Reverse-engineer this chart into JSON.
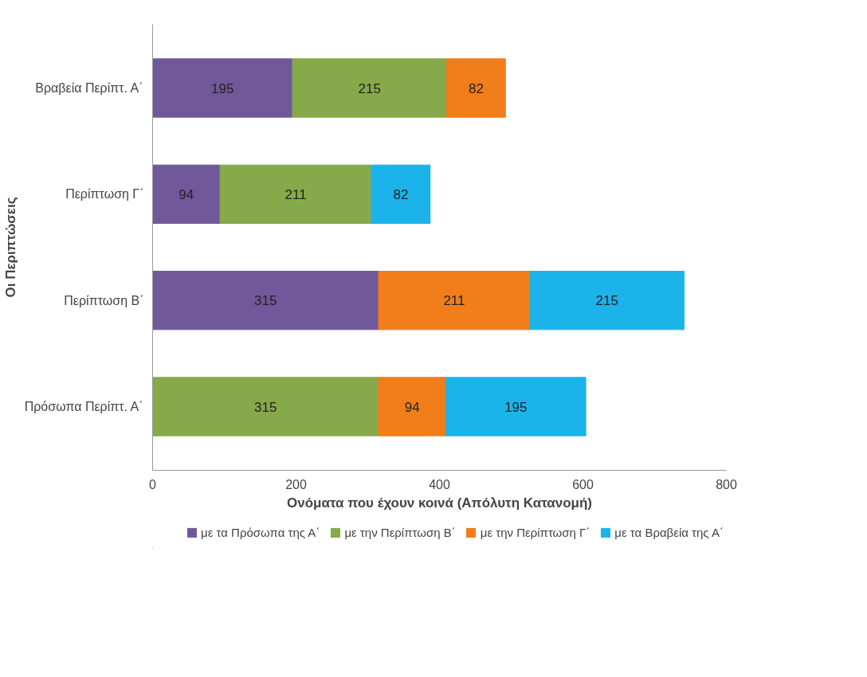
{
  "chart_data": {
    "type": "bar",
    "orientation": "horizontal",
    "stacked": true,
    "xlabel": "Ονόματα που έχουν κοινά (Απόλυτη Κατανομή)",
    "ylabel": "Οι Περιπτώσεις",
    "categories": [
      "Βραβεία Περίπτ. Α΄",
      "Περίπτωση Γ΄",
      "Περίπτωση Β΄",
      "Πρόσωπα Περίπτ. Α΄"
    ],
    "series": [
      {
        "name": "με τα Πρόσωπα της Α΄",
        "color": "#71589a",
        "values": [
          195,
          94,
          315,
          null
        ]
      },
      {
        "name": "με την Περίπτωση Β΄",
        "color": "#86a94a",
        "values": [
          215,
          211,
          null,
          315
        ]
      },
      {
        "name": "με την Περίπτωση Γ΄",
        "color": "#f27d1b",
        "values": [
          82,
          null,
          211,
          94
        ]
      },
      {
        "name": "με τα Βραβεία της Α΄",
        "color": "#1cb3ea",
        "values": [
          null,
          82,
          215,
          195
        ]
      }
    ],
    "xlim": [
      0,
      800
    ],
    "xticks": [
      0,
      200,
      400,
      600,
      800
    ],
    "data_labels": true,
    "legend": "bottom",
    "grid": false
  }
}
